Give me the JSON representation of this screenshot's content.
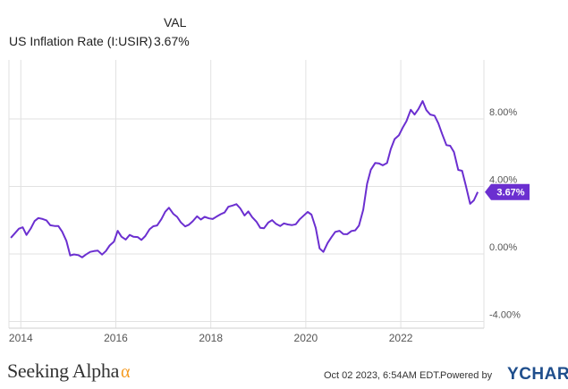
{
  "legend": {
    "header": "VAL",
    "series_name": "US Inflation Rate (I:USIR)",
    "series_value": "3.67%"
  },
  "colors": {
    "line": "#6b2fd0",
    "grid": "#e2e2e2",
    "tag_bg": "#6b2fd0",
    "tag_text": "#ffffff",
    "logo_alpha": "#f59a1f",
    "ycharts": "#1f4e8c"
  },
  "chart_data": {
    "type": "line",
    "x_tick_labels": [
      "2014",
      "2016",
      "2018",
      "2020",
      "2022"
    ],
    "y_tick_labels": [
      "8.00%",
      "4.00%",
      "0.00%",
      "-4.00%"
    ],
    "y_ticks": [
      8,
      4,
      0,
      -4
    ],
    "ylim": [
      -4.4,
      11.5
    ],
    "xlim": [
      2013.75,
      2023.75
    ],
    "grid": true,
    "last_value_label": "3.67%",
    "series": [
      {
        "name": "US Inflation Rate (I:USIR)",
        "points": [
          [
            2013.79,
            0.96
          ],
          [
            2013.88,
            1.24
          ],
          [
            2013.96,
            1.5
          ],
          [
            2014.04,
            1.58
          ],
          [
            2014.12,
            1.13
          ],
          [
            2014.21,
            1.51
          ],
          [
            2014.29,
            1.95
          ],
          [
            2014.37,
            2.13
          ],
          [
            2014.46,
            2.07
          ],
          [
            2014.54,
            1.99
          ],
          [
            2014.62,
            1.7
          ],
          [
            2014.71,
            1.66
          ],
          [
            2014.79,
            1.66
          ],
          [
            2014.87,
            1.32
          ],
          [
            2014.96,
            0.76
          ],
          [
            2015.04,
            -0.09
          ],
          [
            2015.12,
            -0.03
          ],
          [
            2015.21,
            -0.07
          ],
          [
            2015.29,
            -0.2
          ],
          [
            2015.37,
            -0.04
          ],
          [
            2015.46,
            0.12
          ],
          [
            2015.54,
            0.17
          ],
          [
            2015.62,
            0.2
          ],
          [
            2015.71,
            -0.04
          ],
          [
            2015.79,
            0.17
          ],
          [
            2015.87,
            0.5
          ],
          [
            2015.96,
            0.73
          ],
          [
            2016.04,
            1.37
          ],
          [
            2016.12,
            1.02
          ],
          [
            2016.21,
            0.85
          ],
          [
            2016.29,
            1.13
          ],
          [
            2016.37,
            1.02
          ],
          [
            2016.46,
            1.0
          ],
          [
            2016.54,
            0.83
          ],
          [
            2016.62,
            1.06
          ],
          [
            2016.71,
            1.46
          ],
          [
            2016.79,
            1.64
          ],
          [
            2016.87,
            1.69
          ],
          [
            2016.96,
            2.07
          ],
          [
            2017.04,
            2.5
          ],
          [
            2017.12,
            2.74
          ],
          [
            2017.21,
            2.38
          ],
          [
            2017.29,
            2.2
          ],
          [
            2017.37,
            1.87
          ],
          [
            2017.46,
            1.63
          ],
          [
            2017.54,
            1.73
          ],
          [
            2017.62,
            1.94
          ],
          [
            2017.71,
            2.23
          ],
          [
            2017.79,
            2.04
          ],
          [
            2017.87,
            2.2
          ],
          [
            2017.96,
            2.11
          ],
          [
            2018.04,
            2.07
          ],
          [
            2018.12,
            2.21
          ],
          [
            2018.21,
            2.36
          ],
          [
            2018.29,
            2.46
          ],
          [
            2018.37,
            2.8
          ],
          [
            2018.46,
            2.87
          ],
          [
            2018.54,
            2.95
          ],
          [
            2018.62,
            2.7
          ],
          [
            2018.71,
            2.28
          ],
          [
            2018.79,
            2.52
          ],
          [
            2018.87,
            2.18
          ],
          [
            2018.96,
            1.91
          ],
          [
            2019.04,
            1.55
          ],
          [
            2019.12,
            1.52
          ],
          [
            2019.21,
            1.86
          ],
          [
            2019.29,
            2.0
          ],
          [
            2019.37,
            1.79
          ],
          [
            2019.46,
            1.65
          ],
          [
            2019.54,
            1.81
          ],
          [
            2019.62,
            1.75
          ],
          [
            2019.71,
            1.71
          ],
          [
            2019.79,
            1.76
          ],
          [
            2019.87,
            2.05
          ],
          [
            2019.96,
            2.29
          ],
          [
            2020.04,
            2.49
          ],
          [
            2020.12,
            2.33
          ],
          [
            2020.21,
            1.54
          ],
          [
            2020.29,
            0.33
          ],
          [
            2020.37,
            0.12
          ],
          [
            2020.46,
            0.65
          ],
          [
            2020.54,
            0.99
          ],
          [
            2020.62,
            1.31
          ],
          [
            2020.71,
            1.37
          ],
          [
            2020.79,
            1.18
          ],
          [
            2020.87,
            1.17
          ],
          [
            2020.96,
            1.36
          ],
          [
            2021.04,
            1.4
          ],
          [
            2021.12,
            1.68
          ],
          [
            2021.21,
            2.62
          ],
          [
            2021.29,
            4.16
          ],
          [
            2021.37,
            4.99
          ],
          [
            2021.46,
            5.39
          ],
          [
            2021.54,
            5.37
          ],
          [
            2021.62,
            5.25
          ],
          [
            2021.71,
            5.39
          ],
          [
            2021.79,
            6.22
          ],
          [
            2021.87,
            6.81
          ],
          [
            2021.96,
            7.04
          ],
          [
            2022.04,
            7.48
          ],
          [
            2022.12,
            7.87
          ],
          [
            2022.21,
            8.54
          ],
          [
            2022.29,
            8.26
          ],
          [
            2022.37,
            8.58
          ],
          [
            2022.46,
            9.06
          ],
          [
            2022.54,
            8.52
          ],
          [
            2022.62,
            8.26
          ],
          [
            2022.71,
            8.2
          ],
          [
            2022.79,
            7.75
          ],
          [
            2022.87,
            7.11
          ],
          [
            2022.96,
            6.45
          ],
          [
            2023.04,
            6.41
          ],
          [
            2023.12,
            6.04
          ],
          [
            2023.21,
            4.98
          ],
          [
            2023.29,
            4.93
          ],
          [
            2023.37,
            4.05
          ],
          [
            2023.46,
            2.97
          ],
          [
            2023.54,
            3.18
          ],
          [
            2023.62,
            3.67
          ]
        ]
      }
    ]
  },
  "footer": {
    "logo_text": "Seeking Alpha",
    "logo_alpha": "α",
    "date": "Oct 02 2023, 6:54AM EDT.",
    "powered_by": "Powered by",
    "brand_y": "Y",
    "brand_rest": "CHARTS"
  }
}
